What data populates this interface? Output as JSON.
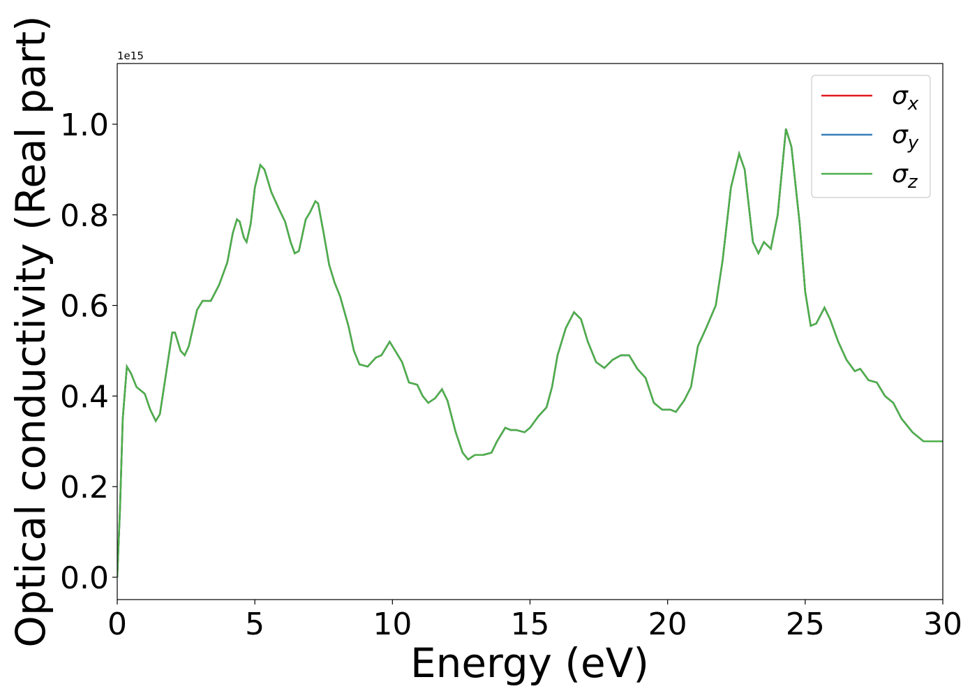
{
  "chart_data": {
    "type": "line",
    "xlabel": "Energy (eV)",
    "ylabel": "Optical conductivity (Real part)",
    "y_offset_label": "1e15",
    "x": [
      0,
      0.1,
      0.2,
      0.35,
      0.5,
      0.7,
      1.0,
      1.2,
      1.4,
      1.55,
      1.8,
      2.0,
      2.1,
      2.3,
      2.45,
      2.6,
      2.9,
      3.1,
      3.4,
      3.7,
      4.0,
      4.2,
      4.35,
      4.45,
      4.6,
      4.7,
      4.85,
      5.0,
      5.2,
      5.35,
      5.6,
      5.9,
      6.1,
      6.3,
      6.45,
      6.6,
      6.85,
      7.0,
      7.2,
      7.3,
      7.5,
      7.7,
      7.9,
      8.1,
      8.4,
      8.6,
      8.8,
      9.1,
      9.4,
      9.6,
      9.9,
      10.1,
      10.35,
      10.6,
      10.9,
      11.1,
      11.3,
      11.55,
      11.8,
      12.0,
      12.3,
      12.55,
      12.75,
      13.0,
      13.3,
      13.6,
      13.8,
      14.1,
      14.3,
      14.5,
      14.8,
      15.0,
      15.3,
      15.6,
      15.8,
      16.0,
      16.3,
      16.6,
      16.85,
      17.1,
      17.4,
      17.7,
      18.0,
      18.3,
      18.6,
      18.9,
      19.2,
      19.5,
      19.8,
      20.1,
      20.3,
      20.6,
      20.85,
      21.1,
      21.4,
      21.75,
      22.0,
      22.3,
      22.6,
      22.8,
      23.1,
      23.3,
      23.5,
      23.75,
      24.0,
      24.3,
      24.5,
      24.8,
      25.0,
      25.2,
      25.4,
      25.7,
      25.9,
      26.2,
      26.5,
      26.8,
      27.0,
      27.3,
      27.6,
      27.9,
      28.2,
      28.5,
      28.9,
      29.3,
      29.7,
      30.0
    ],
    "series": [
      {
        "name": "σx",
        "color": "#e41a1c",
        "values": [
          0,
          0.15,
          0.35,
          0.465,
          0.45,
          0.42,
          0.405,
          0.37,
          0.345,
          0.36,
          0.46,
          0.54,
          0.54,
          0.5,
          0.49,
          0.51,
          0.59,
          0.61,
          0.61,
          0.645,
          0.695,
          0.76,
          0.79,
          0.785,
          0.75,
          0.74,
          0.78,
          0.86,
          0.91,
          0.9,
          0.85,
          0.81,
          0.785,
          0.74,
          0.715,
          0.72,
          0.79,
          0.805,
          0.83,
          0.825,
          0.76,
          0.69,
          0.65,
          0.62,
          0.555,
          0.5,
          0.47,
          0.465,
          0.485,
          0.49,
          0.52,
          0.5,
          0.475,
          0.43,
          0.425,
          0.4,
          0.385,
          0.395,
          0.415,
          0.39,
          0.32,
          0.275,
          0.26,
          0.27,
          0.27,
          0.275,
          0.3,
          0.33,
          0.325,
          0.325,
          0.32,
          0.33,
          0.355,
          0.375,
          0.42,
          0.49,
          0.55,
          0.585,
          0.57,
          0.52,
          0.475,
          0.462,
          0.48,
          0.49,
          0.49,
          0.46,
          0.44,
          0.385,
          0.37,
          0.37,
          0.365,
          0.39,
          0.42,
          0.51,
          0.55,
          0.6,
          0.7,
          0.86,
          0.935,
          0.9,
          0.74,
          0.715,
          0.74,
          0.725,
          0.8,
          0.99,
          0.95,
          0.78,
          0.63,
          0.555,
          0.56,
          0.595,
          0.57,
          0.52,
          0.48,
          0.455,
          0.46,
          0.435,
          0.43,
          0.4,
          0.385,
          0.35,
          0.32,
          0.3,
          0.3,
          0.3
        ]
      },
      {
        "name": "σy",
        "color": "#377eb8",
        "values": [
          0,
          0.15,
          0.35,
          0.465,
          0.45,
          0.42,
          0.405,
          0.37,
          0.345,
          0.36,
          0.46,
          0.54,
          0.54,
          0.5,
          0.49,
          0.51,
          0.59,
          0.61,
          0.61,
          0.645,
          0.695,
          0.76,
          0.79,
          0.785,
          0.75,
          0.74,
          0.78,
          0.86,
          0.91,
          0.9,
          0.85,
          0.81,
          0.785,
          0.74,
          0.715,
          0.72,
          0.79,
          0.805,
          0.83,
          0.825,
          0.76,
          0.69,
          0.65,
          0.62,
          0.555,
          0.5,
          0.47,
          0.465,
          0.485,
          0.49,
          0.52,
          0.5,
          0.475,
          0.43,
          0.425,
          0.4,
          0.385,
          0.395,
          0.415,
          0.39,
          0.32,
          0.275,
          0.26,
          0.27,
          0.27,
          0.275,
          0.3,
          0.33,
          0.325,
          0.325,
          0.32,
          0.33,
          0.355,
          0.375,
          0.42,
          0.49,
          0.55,
          0.585,
          0.57,
          0.52,
          0.475,
          0.462,
          0.48,
          0.49,
          0.49,
          0.46,
          0.44,
          0.385,
          0.37,
          0.37,
          0.365,
          0.39,
          0.42,
          0.51,
          0.55,
          0.6,
          0.7,
          0.86,
          0.935,
          0.9,
          0.74,
          0.715,
          0.74,
          0.725,
          0.8,
          0.99,
          0.95,
          0.78,
          0.63,
          0.555,
          0.56,
          0.595,
          0.57,
          0.52,
          0.48,
          0.455,
          0.46,
          0.435,
          0.43,
          0.4,
          0.385,
          0.35,
          0.32,
          0.3,
          0.3,
          0.3
        ]
      },
      {
        "name": "σz",
        "color": "#4daf4a",
        "values": [
          0,
          0.15,
          0.35,
          0.465,
          0.45,
          0.42,
          0.405,
          0.37,
          0.345,
          0.36,
          0.46,
          0.54,
          0.54,
          0.5,
          0.49,
          0.51,
          0.59,
          0.61,
          0.61,
          0.645,
          0.695,
          0.76,
          0.79,
          0.785,
          0.75,
          0.74,
          0.78,
          0.86,
          0.91,
          0.9,
          0.85,
          0.81,
          0.785,
          0.74,
          0.715,
          0.72,
          0.79,
          0.805,
          0.83,
          0.825,
          0.76,
          0.69,
          0.65,
          0.62,
          0.555,
          0.5,
          0.47,
          0.465,
          0.485,
          0.49,
          0.52,
          0.5,
          0.475,
          0.43,
          0.425,
          0.4,
          0.385,
          0.395,
          0.415,
          0.39,
          0.32,
          0.275,
          0.26,
          0.27,
          0.27,
          0.275,
          0.3,
          0.33,
          0.325,
          0.325,
          0.32,
          0.33,
          0.355,
          0.375,
          0.42,
          0.49,
          0.55,
          0.585,
          0.57,
          0.52,
          0.475,
          0.462,
          0.48,
          0.49,
          0.49,
          0.46,
          0.44,
          0.385,
          0.37,
          0.37,
          0.365,
          0.39,
          0.42,
          0.51,
          0.55,
          0.6,
          0.7,
          0.86,
          0.935,
          0.9,
          0.74,
          0.715,
          0.74,
          0.725,
          0.8,
          0.99,
          0.95,
          0.78,
          0.63,
          0.555,
          0.56,
          0.595,
          0.57,
          0.52,
          0.48,
          0.455,
          0.46,
          0.435,
          0.43,
          0.4,
          0.385,
          0.35,
          0.32,
          0.3,
          0.3,
          0.3
        ]
      }
    ],
    "xlim": [
      0,
      30
    ],
    "xticks": [
      0,
      5,
      10,
      15,
      20,
      25,
      30
    ],
    "ylim": [
      -0.0493,
      1.134
    ],
    "yticks": [
      {
        "value": 0,
        "label": "0.0"
      },
      0.2,
      0.4,
      0.6,
      0.8,
      {
        "value": 1,
        "label": "1.0"
      }
    ],
    "grid": false,
    "legend": "upper right"
  }
}
